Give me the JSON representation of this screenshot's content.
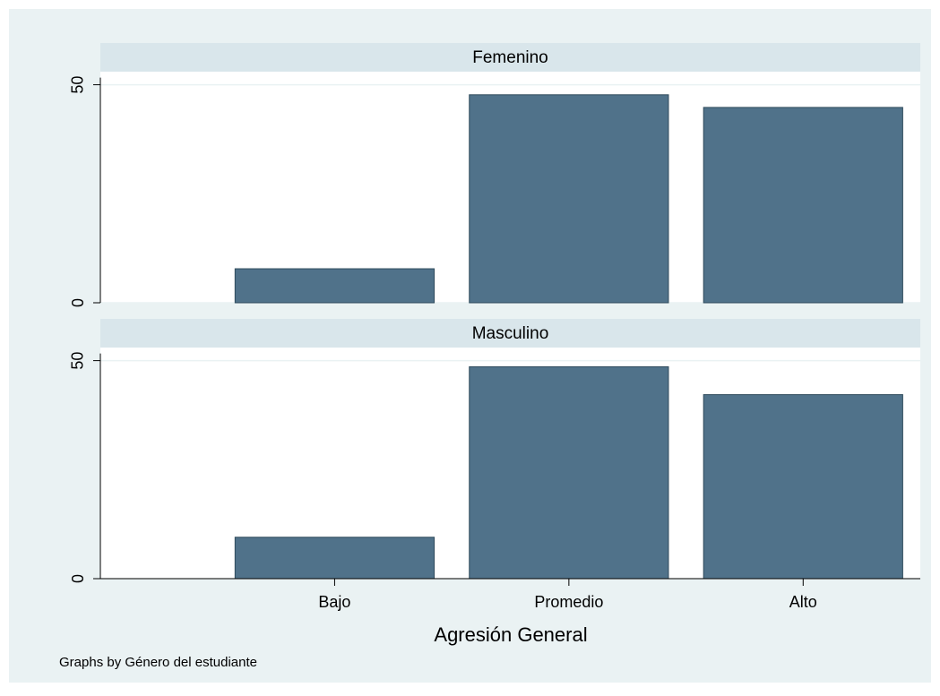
{
  "chart_data": {
    "type": "bar",
    "xlabel": "Agresión General",
    "note": "Graphs by Género del estudiante",
    "x": [
      1,
      2,
      3
    ],
    "xlim": [
      0,
      3.5
    ],
    "xticks": [
      {
        "value": 1,
        "label": "Bajo"
      },
      {
        "value": 2,
        "label": "Promedio"
      },
      {
        "value": 3,
        "label": "Alto"
      }
    ],
    "ylim": [
      0,
      53
    ],
    "yticks": [
      0,
      50
    ],
    "grid": true,
    "color": "#50728a",
    "panels": [
      {
        "title": "Femenino",
        "values": [
          7.8,
          47.7,
          44.8
        ]
      },
      {
        "title": "Masculino",
        "values": [
          9.5,
          48.6,
          42.2
        ]
      }
    ]
  }
}
